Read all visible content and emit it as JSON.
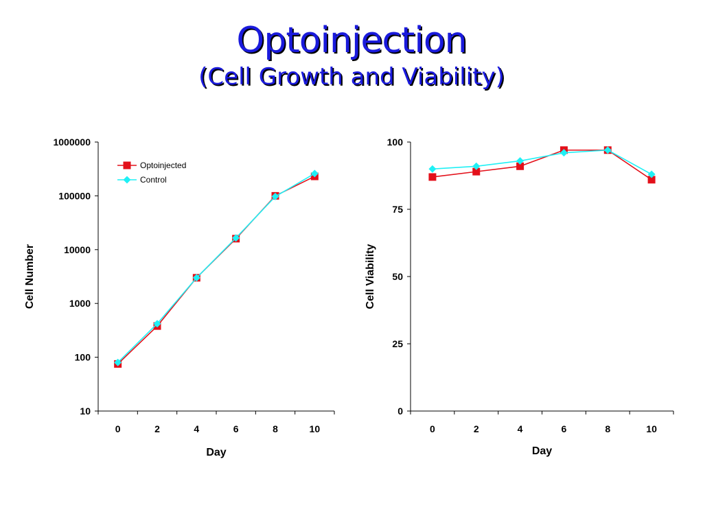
{
  "header": {
    "title": "Optoinjection",
    "subtitle": "(Cell Growth and Viability)"
  },
  "colors": {
    "title": "#1a1adc",
    "optoinjected": "#e3101a",
    "control": "#1ff0f5"
  },
  "chart_data": [
    {
      "type": "line",
      "title": "",
      "xlabel": "Day",
      "ylabel": "Cell Number",
      "yscale": "log",
      "ylim": [
        10,
        1000000
      ],
      "x_ticks": [
        0,
        2,
        4,
        6,
        8,
        10
      ],
      "y_ticks": [
        10,
        100,
        1000,
        10000,
        100000,
        1000000
      ],
      "legend": "top-left",
      "grid": false,
      "x": [
        0,
        2,
        4,
        6,
        8,
        10
      ],
      "series": [
        {
          "name": "Optoinjected",
          "marker": "square",
          "color": "#e3101a",
          "values": [
            75,
            380,
            3000,
            16000,
            100000,
            230000
          ]
        },
        {
          "name": "Control",
          "marker": "diamond",
          "color": "#1ff0f5",
          "values": [
            80,
            420,
            3000,
            16500,
            97000,
            260000
          ]
        }
      ]
    },
    {
      "type": "line",
      "title": "",
      "xlabel": "Day",
      "ylabel": "Cell Viability",
      "yscale": "linear",
      "ylim": [
        0,
        100
      ],
      "x_ticks": [
        0,
        2,
        4,
        6,
        8,
        10
      ],
      "y_ticks": [
        0,
        25,
        50,
        75,
        100
      ],
      "grid": false,
      "x": [
        0,
        2,
        4,
        6,
        8,
        10
      ],
      "series": [
        {
          "marker": "square",
          "color": "#e3101a",
          "values": [
            87,
            89,
            91,
            97,
            97,
            86
          ]
        },
        {
          "marker": "diamond",
          "color": "#1ff0f5",
          "values": [
            90,
            91,
            93,
            96,
            97,
            88
          ]
        }
      ]
    }
  ]
}
